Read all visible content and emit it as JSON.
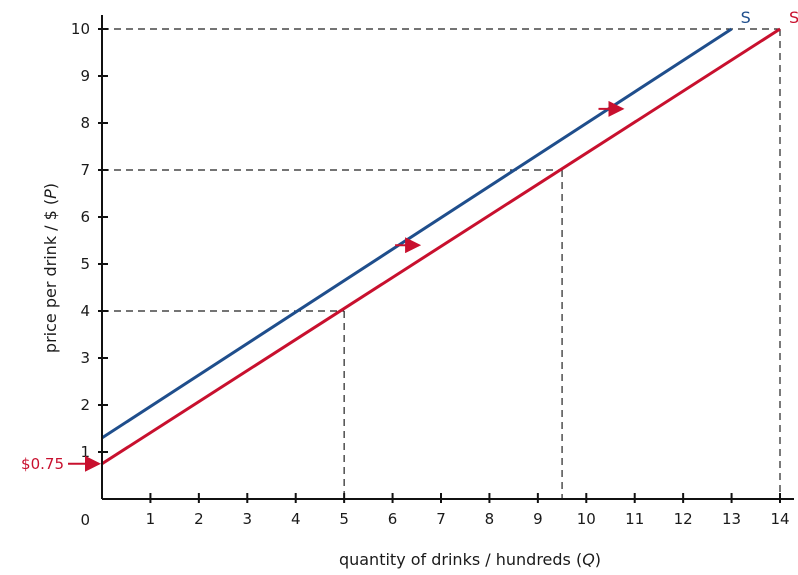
{
  "chart_data": {
    "type": "line",
    "xlabel_parts": [
      "quantity of drinks / hundreds (",
      "Q",
      ")"
    ],
    "ylabel_parts": [
      "price per drink / $ (",
      "P",
      ")"
    ],
    "xlim": [
      0,
      14
    ],
    "ylim": [
      0,
      10
    ],
    "x_ticks": [
      "1",
      "2",
      "3",
      "4",
      "5",
      "6",
      "7",
      "8",
      "9",
      "10",
      "11",
      "12",
      "13",
      "14"
    ],
    "y_ticks": [
      "1",
      "2",
      "3",
      "4",
      "5",
      "6",
      "7",
      "8",
      "9",
      "10"
    ],
    "origin_label": "0",
    "grid": false,
    "series": [
      {
        "name": "S",
        "color": "#1f4e8c",
        "points": [
          [
            0,
            1.3
          ],
          [
            13,
            10
          ]
        ]
      },
      {
        "name": "S",
        "color": "#c8102e",
        "points": [
          [
            0,
            0.75
          ],
          [
            14,
            10
          ]
        ]
      }
    ],
    "guides": [
      {
        "x": 5,
        "y": 4
      },
      {
        "x": 9.5,
        "y": 7
      },
      {
        "x": 14,
        "y": 10
      }
    ],
    "shift_arrows": [
      {
        "x": 6.3,
        "y": 5.4
      },
      {
        "x": 10.5,
        "y": 8.3
      }
    ],
    "annotations": {
      "intercept_label": "$0.75",
      "intercept_value": 0.75,
      "intercept_color": "#c8102e"
    }
  }
}
